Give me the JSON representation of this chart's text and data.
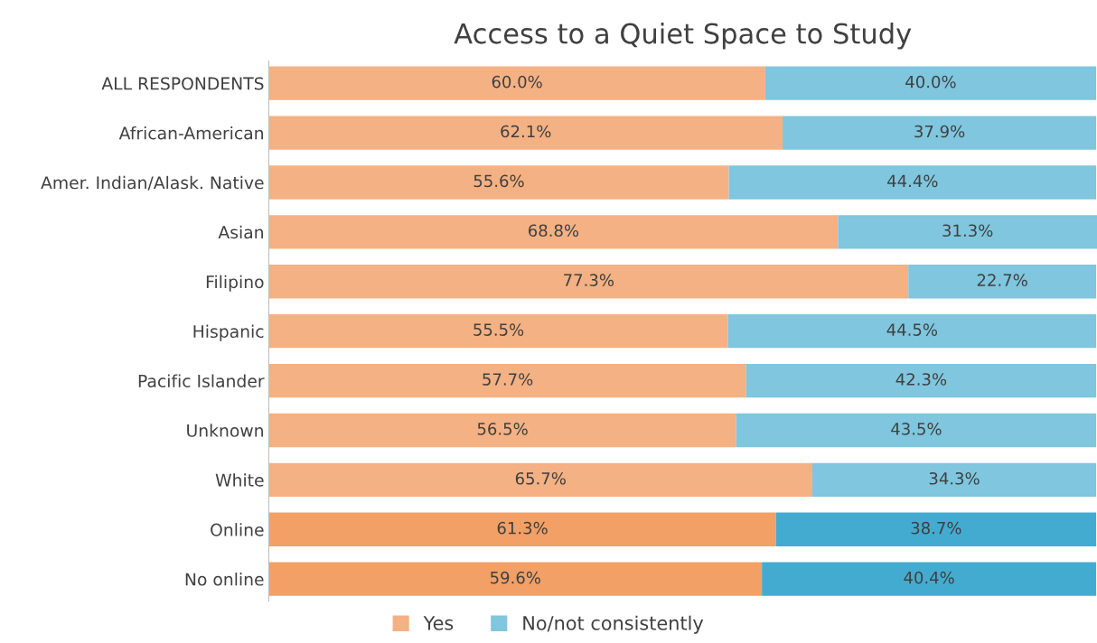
{
  "chart_data": {
    "type": "bar",
    "orientation": "horizontal",
    "stacked": true,
    "title": "Access to a Quiet Space to Study",
    "categories": [
      "ALL RESPONDENTS",
      "African-American",
      "Amer. Indian/Alask. Native",
      "Asian",
      "Filipino",
      "Hispanic",
      "Pacific Islander",
      "Unknown",
      "White",
      "Online",
      "No online"
    ],
    "series": [
      {
        "name": "Yes",
        "color": "#f4b183",
        "colors": [
          "#f4b183",
          "#f4b183",
          "#f4b183",
          "#f4b183",
          "#f4b183",
          "#f4b183",
          "#f4b183",
          "#f4b183",
          "#f4b183",
          "#f2a066",
          "#f2a066"
        ],
        "values": [
          60.0,
          62.1,
          55.6,
          68.8,
          77.3,
          55.5,
          57.7,
          56.5,
          65.7,
          61.3,
          59.6
        ],
        "value_labels": [
          "60.0%",
          "62.1%",
          "55.6%",
          "68.8%",
          "77.3%",
          "55.5%",
          "57.7%",
          "56.5%",
          "65.7%",
          "61.3%",
          "59.6%"
        ]
      },
      {
        "name": "No/not consistently",
        "color": "#7fc6de",
        "colors": [
          "#7fc6de",
          "#7fc6de",
          "#7fc6de",
          "#7fc6de",
          "#7fc6de",
          "#7fc6de",
          "#7fc6de",
          "#7fc6de",
          "#7fc6de",
          "#44abd0",
          "#44abd0"
        ],
        "values": [
          40.0,
          37.9,
          44.4,
          31.3,
          22.7,
          44.5,
          42.3,
          43.5,
          34.3,
          38.7,
          40.4
        ],
        "value_labels": [
          "40.0%",
          "37.9%",
          "44.4%",
          "31.3%",
          "22.7%",
          "44.5%",
          "42.3%",
          "43.5%",
          "34.3%",
          "38.7%",
          "40.4%"
        ]
      }
    ],
    "tick_labels": "y",
    "grid": false,
    "legend": "bottom"
  }
}
